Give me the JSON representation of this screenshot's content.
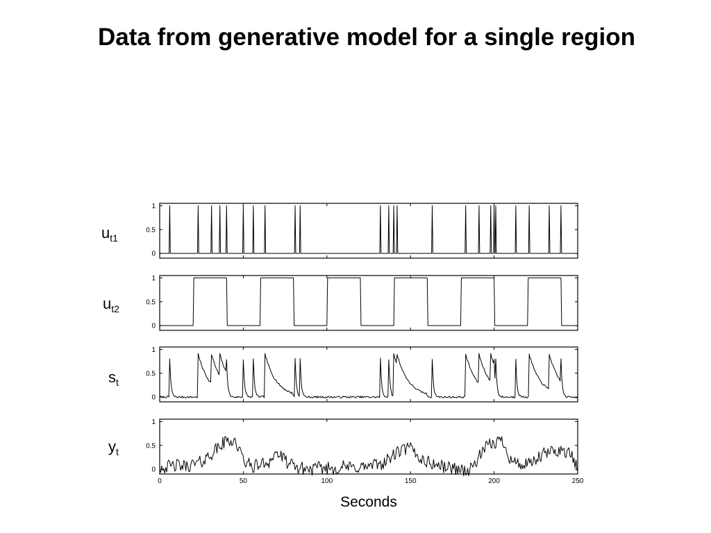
{
  "title": "Data from generative model for a single region",
  "chart_data": {
    "type": "line",
    "xlabel": "Seconds",
    "xlim": [
      0,
      250
    ],
    "x_ticks": [
      "0",
      "50",
      "100",
      "150",
      "200",
      "250"
    ],
    "y_ticks": [
      "0",
      "0.5",
      "1"
    ],
    "ylim": [
      -0.1,
      1.05
    ],
    "grid": false,
    "events_t1": [
      6,
      23,
      31,
      36,
      40,
      50,
      56,
      63,
      81,
      84,
      132,
      137,
      140,
      142,
      163,
      183,
      191,
      198,
      200,
      201,
      213,
      221,
      233,
      240
    ],
    "block_starts": [
      20,
      60,
      100,
      140,
      180,
      220
    ],
    "block_length": 20,
    "series": [
      {
        "id": "ut1",
        "label": "u",
        "sub": "t1"
      },
      {
        "id": "ut2",
        "label": "u",
        "sub": "t2"
      },
      {
        "id": "st",
        "label": "s",
        "sub": "t"
      },
      {
        "id": "yt",
        "label": "y",
        "sub": "t",
        "x": [
          0,
          5,
          10,
          15,
          20,
          25,
          30,
          35,
          40,
          45,
          50,
          55,
          60,
          65,
          70,
          75,
          80,
          85,
          90,
          95,
          100,
          105,
          110,
          115,
          120,
          125,
          130,
          135,
          140,
          145,
          150,
          155,
          160,
          165,
          170,
          175,
          180,
          185,
          190,
          195,
          200,
          205,
          210,
          215,
          220,
          225,
          230,
          235,
          240,
          245,
          250
        ],
        "values": [
          0.05,
          0.05,
          0.08,
          0.06,
          0.1,
          0.15,
          0.3,
          0.45,
          0.6,
          0.6,
          0.2,
          0.05,
          0.1,
          0.15,
          0.35,
          0.18,
          0.05,
          0.02,
          0.0,
          0.02,
          0.03,
          0.02,
          0.05,
          0.03,
          0.05,
          0.05,
          0.1,
          0.15,
          0.3,
          0.4,
          0.45,
          0.25,
          0.15,
          0.1,
          0.05,
          0.03,
          0.0,
          -0.05,
          0.2,
          0.45,
          0.55,
          0.62,
          0.2,
          0.1,
          0.08,
          0.18,
          0.32,
          0.38,
          0.4,
          0.35,
          0.0
        ]
      }
    ]
  }
}
